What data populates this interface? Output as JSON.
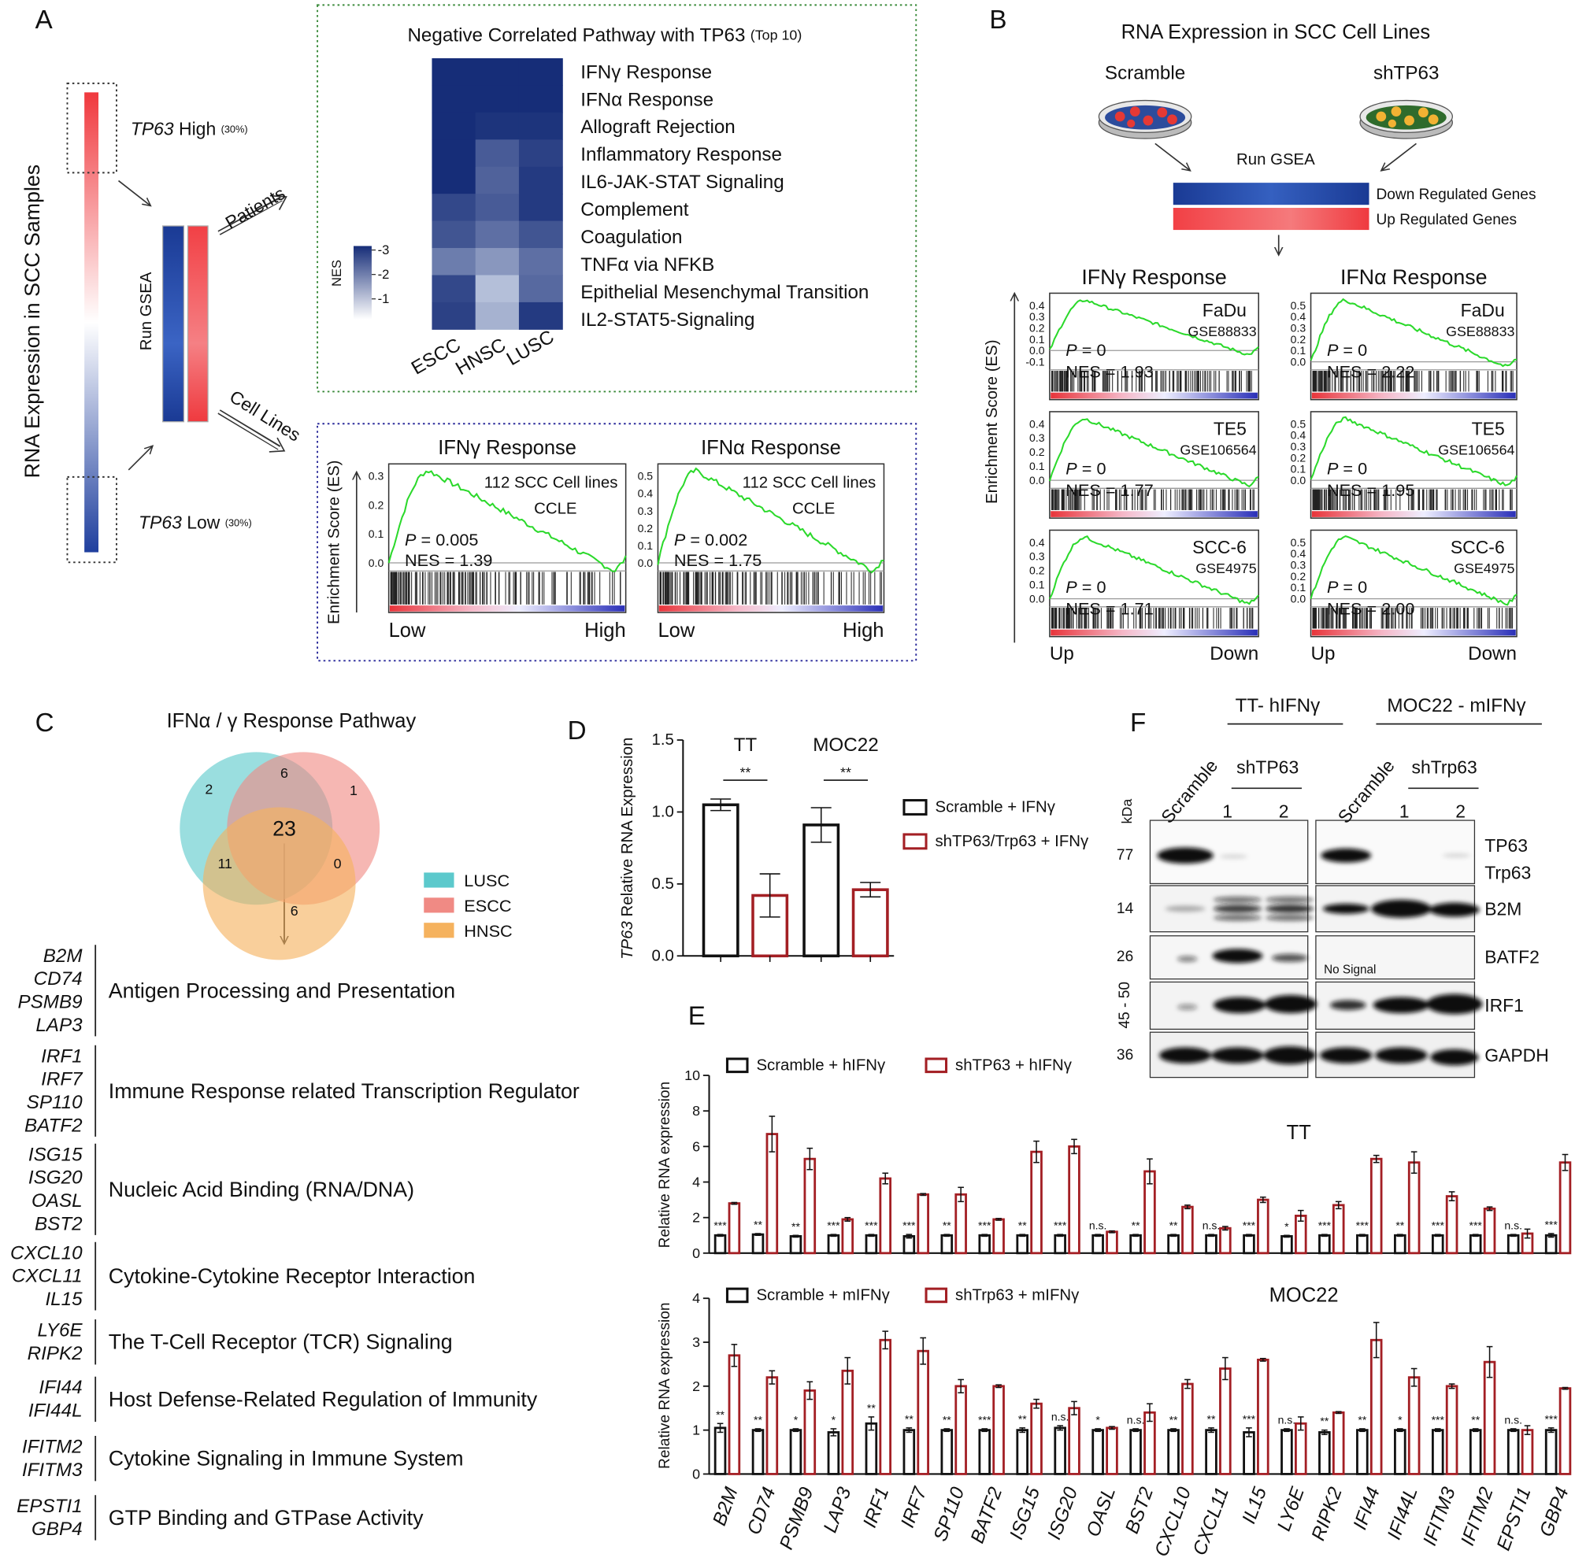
{
  "panels": {
    "a": {
      "label": "A",
      "axis_title": "RNA Expression in SCC Samples",
      "high": [
        "TP63",
        "High",
        "(30%)"
      ],
      "low": [
        "TP63",
        "Low",
        "(30%)"
      ],
      "run_gsea": "Run GSEA",
      "patients": "Patients",
      "cell_lines": "Cell Lines",
      "heatmap": {
        "title": "Negative Correlated Pathway with TP63",
        "title_note": "(Top 10)",
        "rows": [
          "IFNγ Response",
          "IFNα Response",
          "Allograft Rejection",
          "Inflammatory Response",
          "IL6-JAK-STAT Signaling",
          "Complement",
          "Coagulation",
          "TNFα via NFKB",
          "Epithelial Mesenchymal Transition",
          "IL2-STAT5-Signaling"
        ],
        "row_colors": [
          "#b3242a",
          "#b3242a",
          "#222222",
          "#222222",
          "#222222",
          "#222222",
          "#222222",
          "#222222",
          "#222222",
          "#222222"
        ],
        "columns": [
          "ESCC",
          "HNSC",
          "LUSC"
        ],
        "values": [
          [
            -3,
            -3,
            -3
          ],
          [
            -3,
            -3,
            -3
          ],
          [
            -3,
            -2.9,
            -2.9
          ],
          [
            -3,
            -2.3,
            -2.7
          ],
          [
            -3,
            -2.2,
            -2.8
          ],
          [
            -2.6,
            -2.3,
            -2.8
          ],
          [
            -2.4,
            -2.0,
            -2.4
          ],
          [
            -1.8,
            -1.4,
            -2.0
          ],
          [
            -2.6,
            -0.8,
            -2.1
          ],
          [
            -2.7,
            -1.0,
            -2.8
          ]
        ],
        "legend_title": "NES",
        "legend_ticks": [
          -3,
          -2,
          -1
        ],
        "color_lim": [
          -3,
          0
        ]
      },
      "es_label": "Enrichment Score (ES)",
      "gsea": [
        {
          "title": "IFNγ Response",
          "note1": "112 SCC Cell lines",
          "note2": "CCLE",
          "p": [
            "P",
            " = 0.005"
          ],
          "nes": "NES = 1.39",
          "yticks": [
            "0.3",
            "0.2",
            "0.1",
            "0.0"
          ],
          "x": [
            "Low",
            "High"
          ]
        },
        {
          "title": "IFNα Response",
          "note1": "112 SCC Cell lines",
          "note2": "CCLE",
          "p": [
            "P",
            " = 0.002"
          ],
          "nes": "NES = 1.75",
          "yticks": [
            "0.5",
            "0.4",
            "0.3",
            "0.2",
            "0.1",
            "0.0"
          ],
          "x": [
            "Low",
            "High"
          ]
        }
      ]
    },
    "b": {
      "label": "B",
      "title": "RNA Expression in SCC Cell Lines",
      "groups": [
        "Scramble",
        "shTP63"
      ],
      "run_gsea": "Run GSEA",
      "bars": [
        "Down Regulated Genes",
        "Up Regulated Genes"
      ],
      "columns": [
        "IFNγ Response",
        "IFNα Response"
      ],
      "es_label": "Enrichment Score (ES)",
      "x": [
        "Up",
        "Down"
      ],
      "plots": [
        [
          {
            "cell": "FaDu",
            "gse": "GSE88833",
            "p": [
              "P",
              " = 0"
            ],
            "nes": "NES = 1.93",
            "yticks": [
              "0.4",
              "0.3",
              "0.2",
              "0.1",
              "0.0",
              "-0.1"
            ]
          },
          {
            "cell": "TE5",
            "gse": "GSE106564",
            "p": [
              "P",
              " = 0"
            ],
            "nes": "NES = 1.77",
            "yticks": [
              "0.4",
              "0.3",
              "0.2",
              "0.1",
              "0.0"
            ]
          },
          {
            "cell": "SCC-6",
            "gse": "GSE4975",
            "p": [
              "P",
              " = 0"
            ],
            "nes": "NES = 1.71",
            "yticks": [
              "0.4",
              "0.3",
              "0.2",
              "0.1",
              "0.0"
            ]
          }
        ],
        [
          {
            "cell": "FaDu",
            "gse": "GSE88833",
            "p": [
              "P",
              " = 0"
            ],
            "nes": "NES = 2.22",
            "yticks": [
              "0.5",
              "0.4",
              "0.3",
              "0.2",
              "0.1",
              "0.0"
            ]
          },
          {
            "cell": "TE5",
            "gse": "GSE106564",
            "p": [
              "P",
              " = 0"
            ],
            "nes": "NES = 1.95",
            "yticks": [
              "0.5",
              "0.4",
              "0.3",
              "0.2",
              "0.1",
              "0.0"
            ]
          },
          {
            "cell": "SCC-6",
            "gse": "GSE4975",
            "p": [
              "P",
              " = 0"
            ],
            "nes": "NES = 2.00",
            "yticks": [
              "0.5",
              "0.4",
              "0.3",
              "0.2",
              "0.1",
              "0.0"
            ]
          }
        ]
      ]
    },
    "c": {
      "label": "C",
      "title": "IFNα / γ Response Pathway",
      "counts": [
        "2",
        "6",
        "1",
        "23",
        "11",
        "0",
        "6"
      ],
      "legend": [
        "LUSC",
        "ESCC",
        "HNSC"
      ],
      "colors": [
        "#5cc9cc",
        "#f08a84",
        "#f5b25e"
      ],
      "groups": [
        {
          "genes": [
            "B2M",
            "CD74",
            "PSMB9",
            "LAP3"
          ],
          "description": "Antigen Processing and Presentation"
        },
        {
          "genes": [
            "IRF1",
            "IRF7",
            "SP110",
            "BATF2"
          ],
          "description": "Immune Response related Transcription Regulator"
        },
        {
          "genes": [
            "ISG15",
            "ISG20",
            "OASL",
            "BST2"
          ],
          "description": "Nucleic Acid Binding (RNA/DNA)"
        },
        {
          "genes": [
            "CXCL10",
            "CXCL11",
            "IL15"
          ],
          "description": "Cytokine-Cytokine Receptor Interaction"
        },
        {
          "genes": [
            "LY6E",
            "RIPK2"
          ],
          "description": "The T-Cell Receptor (TCR) Signaling"
        },
        {
          "genes": [
            "IFI44",
            "IFI44L"
          ],
          "description": "Host Defense-Related Regulation of Immunity"
        },
        {
          "genes": [
            "IFITM2",
            "IFITM3"
          ],
          "description": "Cytokine Signaling in Immune System"
        },
        {
          "genes": [
            "EPSTI1",
            "GBP4"
          ],
          "description": "GTP Binding and GTPase Activity"
        }
      ]
    },
    "f": {
      "label": "F",
      "headers": [
        "TT- hIFNγ",
        "MOC22 - mIFNγ"
      ],
      "lanes": [
        [
          "Scramble",
          "shTP63",
          "1",
          "2"
        ],
        [
          "Scramble",
          "shTrp63",
          "1",
          "2"
        ]
      ],
      "kda_title": "kDa",
      "kda": [
        "77",
        "14",
        "26",
        "45 - 50",
        "36"
      ],
      "proteins": [
        [
          "TP63",
          "Trp63"
        ],
        [
          "B2M"
        ],
        [
          "BATF2"
        ],
        [
          "IRF1"
        ],
        [
          "GAPDH"
        ]
      ],
      "no_signal": "No Signal"
    }
  },
  "chart_data": [
    {
      "type": "bar",
      "label": "D",
      "ylabel": [
        "TP63",
        " Relative RNA Expression"
      ],
      "categories": [
        "TT",
        "MOC22"
      ],
      "series": [
        {
          "name": "Scramble + IFNγ",
          "color": "#111111",
          "values": [
            1.05,
            0.91
          ],
          "errors": [
            0.04,
            0.12
          ]
        },
        {
          "name": "shTP63/Trp63 + IFNγ",
          "color": "#a31f24",
          "values": [
            0.42,
            0.46
          ],
          "errors": [
            0.15,
            0.05
          ]
        }
      ],
      "ylim": [
        0,
        1.5
      ],
      "yticks": [
        {
          "value": 0,
          "label": "0.0"
        },
        0.5,
        {
          "value": 1,
          "label": "1.0"
        },
        1.5
      ],
      "annotations": [
        "**",
        "**"
      ]
    },
    {
      "type": "bar",
      "label": "E",
      "title": "TT",
      "ylabel": "Relative RNA expression",
      "series": [
        {
          "name": "Scramble + hIFNγ",
          "color": "#111111",
          "values": [
            1.0,
            1.05,
            0.95,
            1.0,
            1.0,
            0.95,
            1.0,
            1.0,
            1.0,
            1.0,
            1.0,
            1.0,
            1.0,
            1.0,
            1.0,
            0.95,
            1.0,
            1.0,
            1.0,
            1.0,
            1.0,
            1.0,
            1.0
          ],
          "errors": [
            0.05,
            0.05,
            0.05,
            0.05,
            0.05,
            0.1,
            0.05,
            0.05,
            0.05,
            0.05,
            0.05,
            0.05,
            0.05,
            0.05,
            0.05,
            0.05,
            0.05,
            0.05,
            0.05,
            0.05,
            0.05,
            0.05,
            0.1
          ]
        },
        {
          "name": "shTP63 + hIFNγ",
          "color": "#a31f24",
          "values": [
            2.8,
            6.7,
            5.3,
            1.9,
            4.2,
            3.3,
            3.3,
            1.9,
            5.7,
            6.0,
            1.2,
            4.6,
            2.6,
            1.4,
            3.0,
            2.1,
            2.7,
            5.3,
            5.1,
            3.2,
            2.5,
            1.1,
            5.1
          ],
          "errors": [
            0.05,
            1.0,
            0.6,
            0.1,
            0.3,
            0.05,
            0.4,
            0.05,
            0.6,
            0.4,
            0.05,
            0.7,
            0.1,
            0.1,
            0.15,
            0.3,
            0.2,
            0.2,
            0.6,
            0.25,
            0.1,
            0.25,
            0.45
          ]
        }
      ],
      "ylim": [
        0,
        10
      ],
      "yticks": [
        0,
        2,
        4,
        6,
        8,
        10
      ],
      "annotations": [
        "***",
        "**",
        "**",
        "***",
        "***",
        "***",
        "**",
        "***",
        "**",
        "***",
        "n.s.",
        "**",
        "**",
        "n.s.",
        "***",
        "*",
        "***",
        "***",
        "**",
        "***",
        "***",
        "n.s.",
        "***"
      ]
    },
    {
      "type": "bar",
      "title": "MOC22",
      "ylabel": "Relative RNA expression",
      "categories": [
        "B2M",
        "CD74",
        "PSMB9",
        "LAP3",
        "IRF1",
        "IRF7",
        "SP110",
        "BATF2",
        "ISG15",
        "ISG20",
        "OASL",
        "BST2",
        "CXCL10",
        "CXCL11",
        "IL15",
        "LY6E",
        "RIPK2",
        "IFI44",
        "IFI44L",
        "IFITM3",
        "IFITM2",
        "EPSTI1",
        "GBP4"
      ],
      "series": [
        {
          "name": "Scramble + mIFNγ",
          "color": "#111111",
          "values": [
            1.05,
            1.0,
            1.0,
            0.95,
            1.15,
            1.0,
            1.0,
            1.0,
            1.0,
            1.05,
            1.0,
            1.0,
            1.0,
            1.0,
            0.95,
            1.0,
            0.95,
            1.0,
            1.0,
            1.0,
            1.0,
            1.0,
            1.0
          ],
          "errors": [
            0.1,
            0.03,
            0.03,
            0.08,
            0.15,
            0.05,
            0.03,
            0.03,
            0.05,
            0.05,
            0.03,
            0.03,
            0.03,
            0.05,
            0.1,
            0.03,
            0.05,
            0.03,
            0.03,
            0.03,
            0.03,
            0.03,
            0.05
          ]
        },
        {
          "name": "shTrp63 + mIFNγ",
          "color": "#a31f24",
          "values": [
            2.7,
            2.2,
            1.9,
            2.35,
            3.05,
            2.8,
            2.0,
            2.0,
            1.6,
            1.5,
            1.05,
            1.4,
            2.05,
            2.4,
            2.6,
            1.15,
            1.4,
            3.05,
            2.2,
            2.0,
            2.55,
            1.0,
            1.95
          ],
          "errors": [
            0.25,
            0.15,
            0.2,
            0.3,
            0.2,
            0.3,
            0.15,
            0.03,
            0.1,
            0.15,
            0.03,
            0.2,
            0.1,
            0.25,
            0.03,
            0.15,
            0.02,
            0.4,
            0.2,
            0.05,
            0.35,
            0.1,
            0.02
          ]
        }
      ],
      "ylim": [
        0,
        4
      ],
      "yticks": [
        0,
        1,
        2,
        3,
        4
      ],
      "annotations": [
        "**",
        "**",
        "*",
        "*",
        "**",
        "**",
        "**",
        "***",
        "**",
        "n.s.",
        "*",
        "n.s.",
        "**",
        "**",
        "***",
        "n.s.",
        "**",
        "**",
        "*",
        "***",
        "**",
        "n.s.",
        "***"
      ]
    }
  ]
}
